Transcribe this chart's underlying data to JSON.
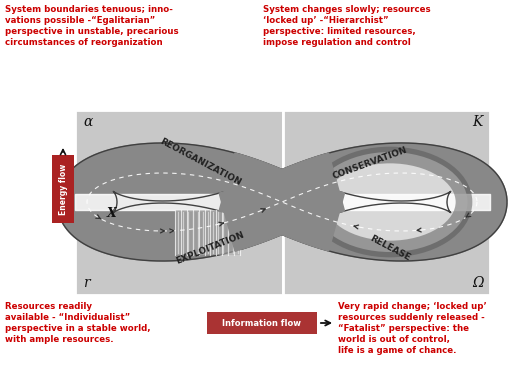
{
  "bg_color": "#ffffff",
  "box_color": "#c8c8c8",
  "loop_outer_color": "#707070",
  "loop_inner_color": "#a0a0a0",
  "loop_edge_color": "#404040",
  "arrow_color": "#505050",
  "top_left_text": "System boundaries tenuous; inno-\nvations possible -“Egalitarian”\nperspective in unstable, precarious\ncircumstances of reorganization",
  "top_right_text": "System changes slowly; resources\n‘locked up’ -“Hierarchist”\nperspective: limited resources,\nimpose regulation and control",
  "bottom_left_text": "Resources readily\navailable - “Individualist”\nperspective in a stable world,\nwith ample resources.",
  "bottom_right_text": "Very rapid change; ‘locked up’\nresources suddenly released -\n“Fatalist” perspective: the\nworld is out of control,\nlife is a game of chance.",
  "label_alpha": "α",
  "label_K": "K",
  "label_r": "r",
  "label_omega": "Ω",
  "label_reorganization": "REORGANIZATION",
  "label_exploitation": "EXPLOITATION",
  "label_conservation": "CONSERVATION",
  "label_release": "RELEASE",
  "energy_flow_text": "Energy flow",
  "info_flow_text": "Information flow",
  "energy_box_color": "#aa2222",
  "info_box_color": "#aa3333",
  "text_color_red": "#cc0000",
  "text_color_blue": "#000080",
  "text_color_dark": "#1a1a1a",
  "figsize": [
    5.13,
    3.74
  ],
  "dpi": 100
}
